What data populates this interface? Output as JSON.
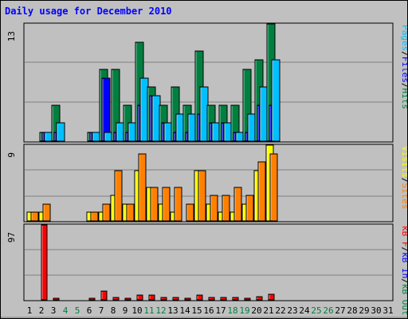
{
  "chart_data": [
    {
      "type": "bar",
      "title": "Daily usage for December 2010",
      "panel": "top",
      "ymax_label": "13",
      "legend": [
        {
          "text": "Pages",
          "color": "#00c0ff"
        },
        {
          "text": "/",
          "color": "#000000"
        },
        {
          "text": "Files",
          "color": "#0000ff"
        },
        {
          "text": "/",
          "color": "#000000"
        },
        {
          "text": "Hits",
          "color": "#008040"
        }
      ],
      "categories": [
        1,
        2,
        3,
        4,
        5,
        6,
        7,
        8,
        9,
        10,
        11,
        12,
        13,
        14,
        15,
        16,
        17,
        18,
        19,
        20,
        21,
        22,
        23,
        24,
        25,
        26,
        27,
        28,
        29,
        30,
        31
      ],
      "series": [
        {
          "name": "Hits",
          "color": "#008040",
          "values": [
            0,
            1,
            4,
            0,
            0,
            1,
            8,
            8,
            4,
            11,
            6,
            4,
            6,
            4,
            10,
            4,
            4,
            4,
            8,
            9,
            13,
            0,
            0,
            0,
            0,
            0,
            0,
            0,
            0,
            0,
            0
          ]
        },
        {
          "name": "Files",
          "color": "#0000ff",
          "values": [
            0,
            1,
            1,
            0,
            0,
            1,
            7,
            1,
            1,
            4,
            5,
            2,
            1,
            1,
            3,
            2,
            2,
            1,
            1,
            4,
            4,
            0,
            0,
            0,
            0,
            0,
            0,
            0,
            0,
            0,
            0
          ]
        },
        {
          "name": "Pages",
          "color": "#00c0ff",
          "values": [
            0,
            1,
            2,
            0,
            0,
            1,
            1,
            2,
            2,
            7,
            5,
            2,
            3,
            3,
            6,
            2,
            2,
            1,
            3,
            6,
            9,
            0,
            0,
            0,
            0,
            0,
            0,
            0,
            0,
            0,
            0
          ]
        }
      ]
    },
    {
      "type": "bar",
      "panel": "middle",
      "ymax_label": "9",
      "legend": [
        {
          "text": "Visits",
          "color": "#ffff00"
        },
        {
          "text": "/",
          "color": "#000000"
        },
        {
          "text": "Sites",
          "color": "#ff8000"
        }
      ],
      "categories": [
        1,
        2,
        3,
        4,
        5,
        6,
        7,
        8,
        9,
        10,
        11,
        12,
        13,
        14,
        15,
        16,
        17,
        18,
        19,
        20,
        21,
        22,
        23,
        24,
        25,
        26,
        27,
        28,
        29,
        30,
        31
      ],
      "series": [
        {
          "name": "Visits",
          "color": "#ffff00",
          "values": [
            1,
            1,
            0,
            0,
            0,
            1,
            1,
            3,
            2,
            6,
            4,
            2,
            1,
            0,
            6,
            2,
            1,
            1,
            2,
            6,
            9,
            0,
            0,
            0,
            0,
            0,
            0,
            0,
            0,
            0,
            0
          ]
        },
        {
          "name": "Sites",
          "color": "#ff8000",
          "values": [
            1,
            2,
            0,
            0,
            0,
            1,
            2,
            6,
            2,
            8,
            4,
            4,
            4,
            2,
            6,
            3,
            3,
            4,
            3,
            7,
            8,
            0,
            0,
            0,
            0,
            0,
            0,
            0,
            0,
            0,
            0
          ]
        }
      ]
    },
    {
      "type": "bar",
      "panel": "bottom",
      "ymax_label": "97",
      "legend": [
        {
          "text": "kB F",
          "color": "#ff0000"
        },
        {
          "text": "/",
          "color": "#000000"
        },
        {
          "text": "kB In",
          "color": "#0000ff"
        },
        {
          "text": "/",
          "color": "#000000"
        },
        {
          "text": "kB Out",
          "color": "#008040"
        }
      ],
      "categories": [
        1,
        2,
        3,
        4,
        5,
        6,
        7,
        8,
        9,
        10,
        11,
        12,
        13,
        14,
        15,
        16,
        17,
        18,
        19,
        20,
        21,
        22,
        23,
        24,
        25,
        26,
        27,
        28,
        29,
        30,
        31
      ],
      "series": [
        {
          "name": "kB F",
          "color": "#ff0000",
          "values": [
            0,
            97,
            2,
            0,
            0,
            2,
            11,
            3,
            1,
            6,
            6,
            3,
            3,
            2,
            6,
            3,
            3,
            3,
            2,
            4,
            7,
            0,
            0,
            0,
            0,
            0,
            0,
            0,
            0,
            0,
            0
          ]
        }
      ],
      "x_label_colors": [
        "#000000",
        "#000000",
        "#000000",
        "#008040",
        "#008040",
        "#000000",
        "#000000",
        "#000000",
        "#000000",
        "#000000",
        "#008040",
        "#008040",
        "#000000",
        "#000000",
        "#000000",
        "#000000",
        "#000000",
        "#008040",
        "#008040",
        "#000000",
        "#000000",
        "#000000",
        "#000000",
        "#000000",
        "#008040",
        "#008040",
        "#000000",
        "#000000",
        "#000000",
        "#000000",
        "#000000"
      ]
    }
  ]
}
